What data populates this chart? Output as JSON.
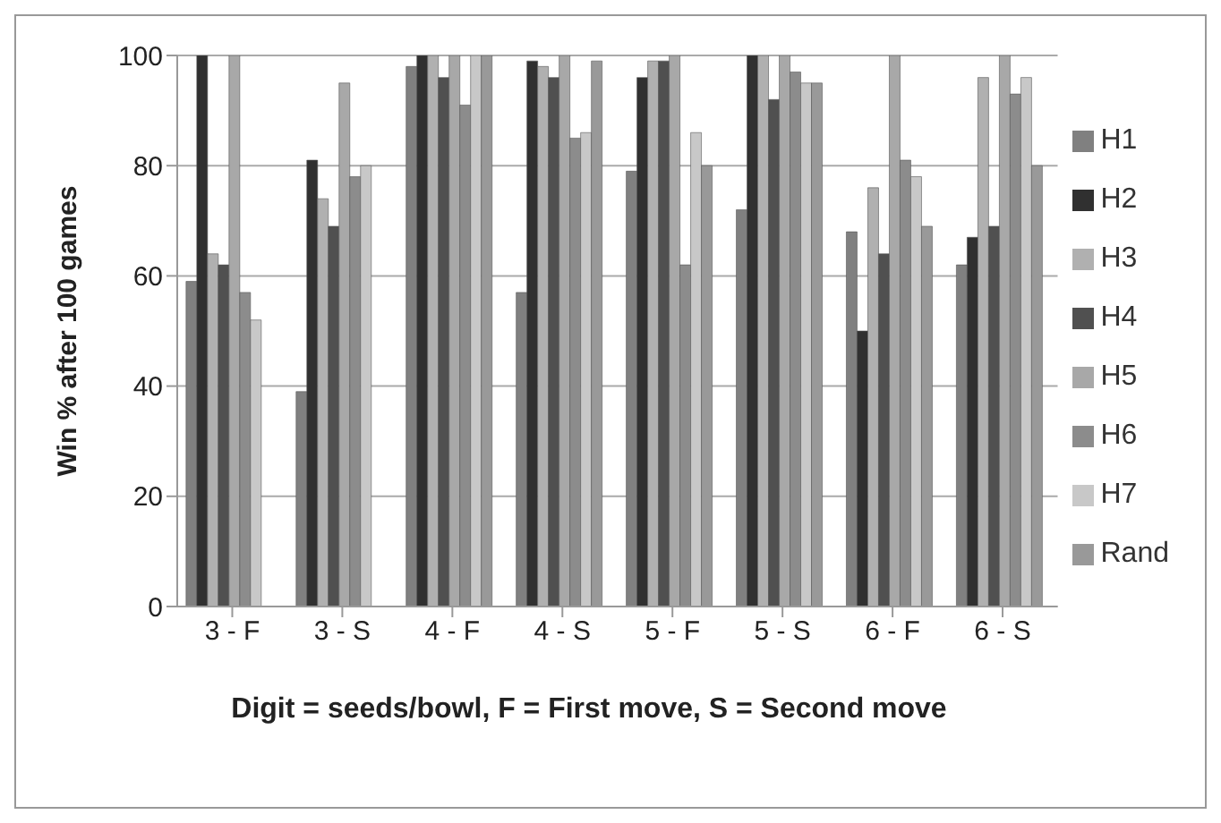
{
  "chart_data": {
    "type": "bar",
    "xlabel": "Digit = seeds/bowl, F = First move, S = Second move",
    "ylabel": "Win % after 100 games",
    "categories": [
      "3 - F",
      "3 - S",
      "4 - F",
      "4 - S",
      "5 - F",
      "5 - S",
      "6 - F",
      "6 - S"
    ],
    "series": [
      {
        "name": "H1",
        "color": "#808080",
        "values": [
          59,
          39,
          98,
          57,
          79,
          72,
          68,
          62
        ]
      },
      {
        "name": "H2",
        "color": "#303030",
        "values": [
          100,
          81,
          100,
          99,
          96,
          100,
          50,
          67
        ]
      },
      {
        "name": "H3",
        "color": "#b0b0b0",
        "values": [
          64,
          74,
          100,
          98,
          99,
          100,
          76,
          96
        ]
      },
      {
        "name": "H4",
        "color": "#505050",
        "values": [
          62,
          69,
          96,
          96,
          99,
          92,
          64,
          69
        ]
      },
      {
        "name": "H5",
        "color": "#a8a8a8",
        "values": [
          100,
          95,
          100,
          100,
          100,
          100,
          100,
          100
        ]
      },
      {
        "name": "H6",
        "color": "#8c8c8c",
        "values": [
          57,
          78,
          91,
          85,
          62,
          97,
          81,
          93
        ]
      },
      {
        "name": "H7",
        "color": "#c8c8c8",
        "values": [
          52,
          80,
          100,
          86,
          86,
          95,
          78,
          96
        ]
      },
      {
        "name": "Rand",
        "color": "#999999",
        "values": [
          0,
          0,
          100,
          99,
          80,
          95,
          69,
          80
        ]
      }
    ],
    "ylim": [
      0,
      100
    ],
    "yticks": [
      0,
      20,
      40,
      60,
      80,
      100
    ],
    "grid": "y",
    "legend": "right"
  }
}
